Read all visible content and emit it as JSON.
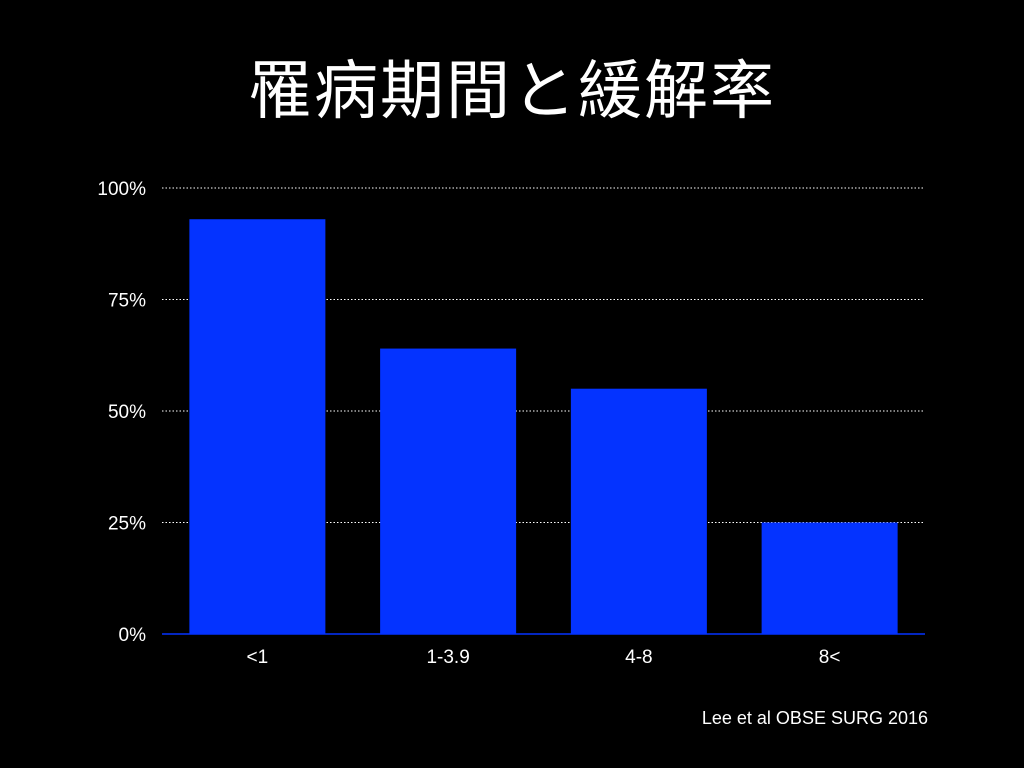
{
  "slide": {
    "title": "罹病期間と緩解率",
    "citation": "Lee et al OBSE SURG 2016"
  },
  "colors": {
    "background": "#000000",
    "bar": "#0433ff",
    "text": "#ffffff",
    "grid": "#ffffff"
  },
  "chart_data": {
    "type": "bar",
    "title": "罹病期間と緩解率",
    "categories": [
      "<1",
      "1-3.9",
      "4-8",
      "8<"
    ],
    "series": [
      {
        "values": [
          93,
          64,
          55,
          25
        ]
      }
    ],
    "xlabel": "",
    "ylabel": "",
    "ylim": [
      0,
      100
    ],
    "yticks": [
      0,
      25,
      50,
      75,
      100
    ],
    "ytick_labels": [
      "0%",
      "25%",
      "50%",
      "75%",
      "100%"
    ],
    "grid": true,
    "grid_style": "dotted",
    "legend": "none"
  }
}
